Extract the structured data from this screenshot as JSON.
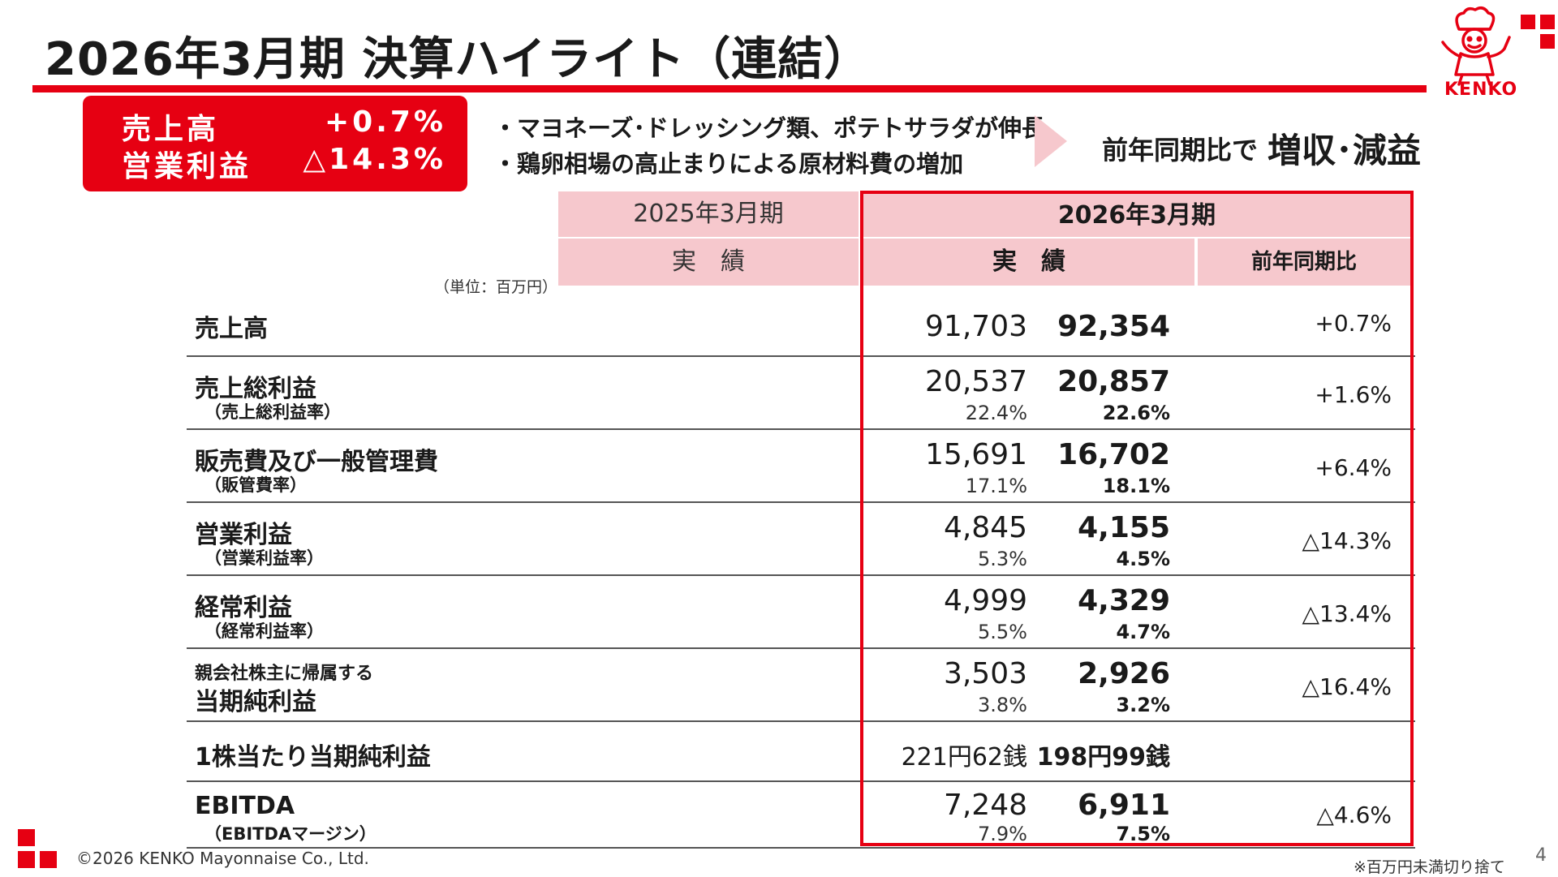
{
  "title": "2026年3月期 決算ハイライト（連結）",
  "brand": {
    "logo_text": "KENKO",
    "accent": "#e60012",
    "header_fill": "#f6c8cd"
  },
  "highlight": {
    "rows": [
      {
        "label": "売上高",
        "value": "+0.7%"
      },
      {
        "label": "営業利益",
        "value": "△14.3%"
      }
    ]
  },
  "bullets": [
    "・マヨネーズ･ドレッシング類、ポテトサラダが伸長",
    "・鶏卵相場の高止まりによる原材料費の増加"
  ],
  "summary": {
    "prefix": "前年同期比で",
    "result": "増収･減益"
  },
  "table": {
    "unit_note": "（単位：百万円）",
    "period_prev": "2025年3月期",
    "period_curr": "2026年3月期",
    "col_actual_prev": "実　績",
    "col_actual_curr": "実　績",
    "col_yoy": "前年同期比",
    "rows": [
      {
        "name": "売上高",
        "sub": "",
        "v25": "91,703",
        "v25s": "",
        "v26": "92,354",
        "v26s": "",
        "yoy": "+0.7%"
      },
      {
        "name": "売上総利益",
        "sub": "（売上総利益率）",
        "v25": "20,537",
        "v25s": "22.4%",
        "v26": "20,857",
        "v26s": "22.6%",
        "yoy": "+1.6%"
      },
      {
        "name": "販売費及び一般管理費",
        "sub": "（販管費率）",
        "v25": "15,691",
        "v25s": "17.1%",
        "v26": "16,702",
        "v26s": "18.1%",
        "yoy": "+6.4%"
      },
      {
        "name": "営業利益",
        "sub": "（営業利益率）",
        "v25": "4,845",
        "v25s": "5.3%",
        "v26": "4,155",
        "v26s": "4.5%",
        "yoy": "△14.3%"
      },
      {
        "name": "経常利益",
        "sub": "（経常利益率）",
        "v25": "4,999",
        "v25s": "5.5%",
        "v26": "4,329",
        "v26s": "4.7%",
        "yoy": "△13.4%"
      },
      {
        "pre": "親会社株主に帰属する",
        "name": "当期純利益",
        "v25": "3,503",
        "v25s": "3.8%",
        "v26": "2,926",
        "v26s": "3.2%",
        "yoy": "△16.4%"
      },
      {
        "name": "1株当たり当期純利益",
        "v25": "221円62銭",
        "v26": "198円99銭",
        "yoy": ""
      },
      {
        "name": "EBITDA",
        "sub": "（EBITDAマージン）",
        "v25": "7,248",
        "v25s": "7.9%",
        "v26": "6,911",
        "v26s": "7.5%",
        "yoy": "△4.6%"
      }
    ]
  },
  "footer": {
    "copyright": "©2026 KENKO Mayonnaise Co., Ltd.",
    "note": "※百万円未満切り捨て",
    "page": "4"
  }
}
